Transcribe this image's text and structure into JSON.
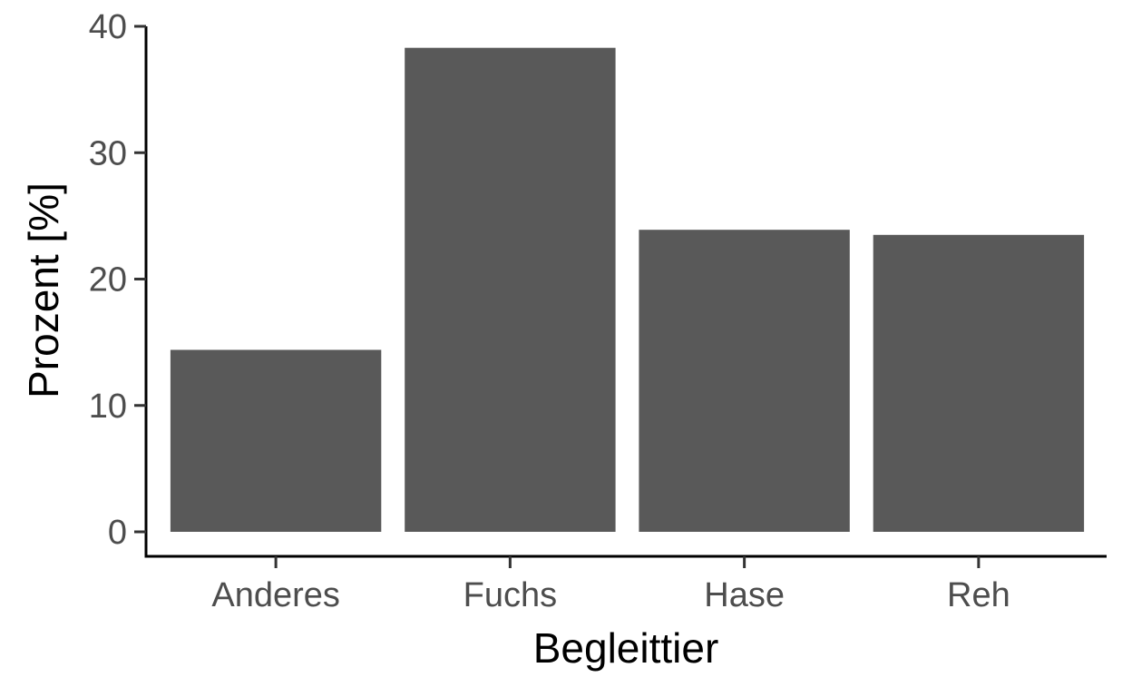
{
  "chart_data": {
    "type": "bar",
    "categories": [
      "Anderes",
      "Fuchs",
      "Hase",
      "Reh"
    ],
    "values": [
      14.4,
      38.3,
      23.9,
      23.5
    ],
    "xlabel": "Begleittier",
    "ylabel": "Prozent [%]",
    "ylim": [
      0,
      40
    ],
    "yticks": [
      0,
      10,
      20,
      30,
      40
    ],
    "grid": false,
    "legend": "none",
    "colors": {
      "bar": "#595959",
      "axis": "#000000",
      "tick_label": "#4d4d4d"
    }
  }
}
